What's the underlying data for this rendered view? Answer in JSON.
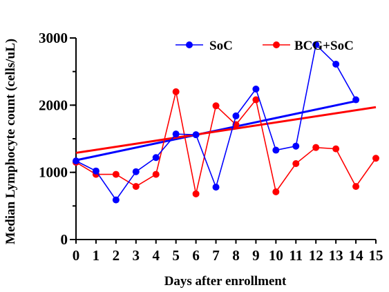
{
  "chart_data": {
    "type": "line",
    "title": "",
    "xlabel": "Days after enrollment",
    "ylabel": "Median Lymphocyte count (cells/uL)",
    "xlim": [
      0,
      15
    ],
    "ylim": [
      0,
      3000
    ],
    "x_ticks": [
      "0",
      "1",
      "2",
      "3",
      "4",
      "5",
      "6",
      "7",
      "8",
      "9",
      "10",
      "11",
      "12",
      "13",
      "14",
      "15"
    ],
    "y_ticks": [
      "0",
      "1000",
      "2000",
      "3000"
    ],
    "grid": false,
    "legend_position": "top-right",
    "series": [
      {
        "name": "SoC",
        "color": "#0000ff",
        "x": [
          0,
          1,
          2,
          3,
          4,
          5,
          6,
          7,
          8,
          9,
          10,
          11,
          12,
          13,
          14
        ],
        "y": [
          1170,
          1020,
          590,
          1010,
          1220,
          1570,
          1560,
          780,
          1840,
          2240,
          1330,
          1390,
          2900,
          2610,
          2080
        ],
        "trend": {
          "x": [
            0,
            14
          ],
          "y": [
            1180,
            2060
          ]
        }
      },
      {
        "name": "BCG+SoC",
        "color": "#ff0000",
        "x": [
          0,
          1,
          2,
          3,
          4,
          5,
          6,
          7,
          8,
          9,
          10,
          11,
          12,
          13,
          14,
          15
        ],
        "y": [
          1150,
          970,
          970,
          790,
          970,
          2200,
          680,
          1990,
          1710,
          2080,
          710,
          1130,
          1370,
          1350,
          790,
          1210
        ],
        "trend": {
          "x": [
            0,
            15
          ],
          "y": [
            1290,
            1970
          ]
        }
      }
    ]
  }
}
